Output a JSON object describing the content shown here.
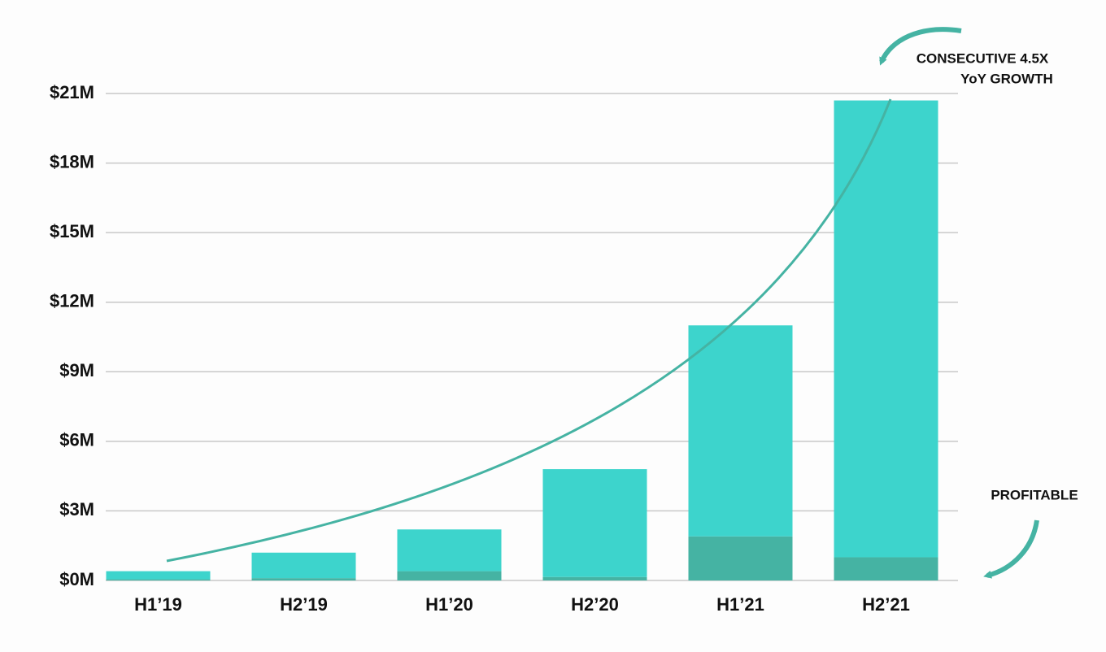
{
  "chart_data": {
    "type": "stacked_bar",
    "annotations": [
      "CONSECUTIVE 4.5X",
      "YoY GROWTH",
      "PROFITABLE"
    ],
    "categories": [
      "H1’19",
      "H2’19",
      "H1’20",
      "H2’20",
      "H1’21",
      "H2’21"
    ],
    "series": [
      {
        "color": "#45b3a3",
        "values": [
          0.05,
          0.1,
          0.4,
          0.15,
          1.9,
          1.0
        ]
      },
      {
        "color": "#3dd4cc",
        "values": [
          0.35,
          1.1,
          1.8,
          4.65,
          9.1,
          19.7
        ]
      }
    ],
    "ylim": [
      0,
      21
    ],
    "yticks": [
      {
        "value": 0,
        "label": "$0M"
      },
      {
        "value": 3,
        "label": "$3M"
      },
      {
        "value": 6,
        "label": "$6M"
      },
      {
        "value": 9,
        "label": "$9M"
      },
      {
        "value": 12,
        "label": "$12M"
      },
      {
        "value": 15,
        "label": "$15M"
      },
      {
        "value": 18,
        "label": "$18M"
      },
      {
        "value": 21,
        "label": "$21M"
      }
    ],
    "grid": true
  }
}
